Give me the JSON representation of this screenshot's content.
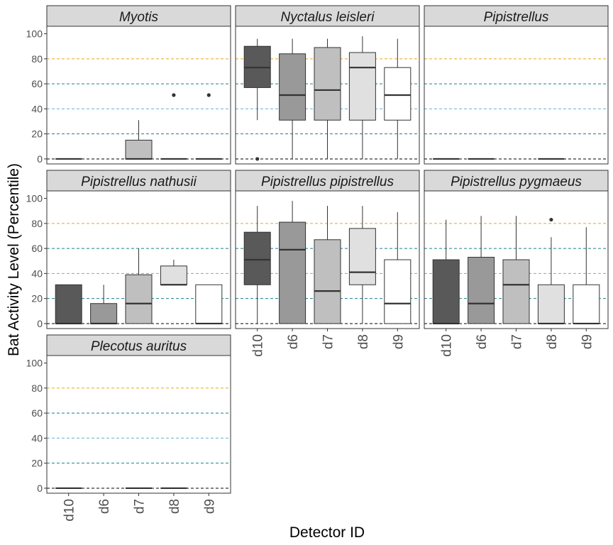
{
  "chart_data": {
    "type": "boxplot",
    "title": "",
    "xlabel": "Detector ID",
    "ylabel": "Bat Activity Level (Percentile)",
    "ylim": [
      -4,
      106
    ],
    "yticks": [
      0,
      20,
      40,
      60,
      80,
      100
    ],
    "categories": [
      "d10",
      "d6",
      "d7",
      "d8",
      "d9"
    ],
    "fill_colors": {
      "d10": "#595959",
      "d6": "#999999",
      "d7": "#bfbfbf",
      "d8": "#e0e0e0",
      "d9": "#ffffff"
    },
    "reference_lines": [
      {
        "y": 0,
        "color": "#000000"
      },
      {
        "y": 20,
        "color": "#1a7f8a"
      },
      {
        "y": 40,
        "color": "#6aaed6"
      },
      {
        "y": 60,
        "color": "#1a7f8a"
      },
      {
        "y": 80,
        "color": "#e6a817"
      }
    ],
    "facet_layout": {
      "columns": 3,
      "rows": 3
    },
    "facets": [
      {
        "name": "Myotis",
        "boxes": [
          {
            "category": "d10",
            "q1": 0,
            "median": 0,
            "q3": 0,
            "low": 0,
            "high": 0,
            "outliers": []
          },
          {
            "category": "d7",
            "q1": 0,
            "median": 0,
            "q3": 15,
            "low": 0,
            "high": 31,
            "outliers": []
          },
          {
            "category": "d8",
            "q1": 0,
            "median": 0,
            "q3": 0,
            "low": 0,
            "high": 0,
            "outliers": [
              51
            ]
          },
          {
            "category": "d9",
            "q1": 0,
            "median": 0,
            "q3": 0,
            "low": 0,
            "high": 0,
            "outliers": [
              51
            ]
          }
        ]
      },
      {
        "name": "Nyctalus leisleri",
        "boxes": [
          {
            "category": "d10",
            "q1": 57,
            "median": 73,
            "q3": 90,
            "low": 31,
            "high": 96,
            "outliers": [
              0
            ]
          },
          {
            "category": "d6",
            "q1": 31,
            "median": 51,
            "q3": 84,
            "low": 0,
            "high": 96,
            "outliers": []
          },
          {
            "category": "d7",
            "q1": 31,
            "median": 55,
            "q3": 89,
            "low": 0,
            "high": 96,
            "outliers": []
          },
          {
            "category": "d8",
            "q1": 31,
            "median": 73,
            "q3": 85,
            "low": 0,
            "high": 98,
            "outliers": []
          },
          {
            "category": "d9",
            "q1": 31,
            "median": 51,
            "q3": 73,
            "low": 0,
            "high": 96,
            "outliers": []
          }
        ]
      },
      {
        "name": "Pipistrellus",
        "boxes": [
          {
            "category": "d10",
            "q1": 0,
            "median": 0,
            "q3": 0,
            "low": 0,
            "high": 0,
            "outliers": []
          },
          {
            "category": "d6",
            "q1": 0,
            "median": 0,
            "q3": 0,
            "low": 0,
            "high": 0,
            "outliers": []
          },
          {
            "category": "d8",
            "q1": 0,
            "median": 0,
            "q3": 0,
            "low": 0,
            "high": 0,
            "outliers": []
          }
        ]
      },
      {
        "name": "Pipistrellus nathusii",
        "boxes": [
          {
            "category": "d10",
            "q1": 0,
            "median": 0,
            "q3": 31,
            "low": 0,
            "high": 31,
            "outliers": []
          },
          {
            "category": "d6",
            "q1": 0,
            "median": 0,
            "q3": 16,
            "low": 0,
            "high": 31,
            "outliers": []
          },
          {
            "category": "d7",
            "q1": 0,
            "median": 16,
            "q3": 39,
            "low": 0,
            "high": 60,
            "outliers": []
          },
          {
            "category": "d8",
            "q1": 31,
            "median": 31,
            "q3": 46,
            "low": 31,
            "high": 51,
            "outliers": []
          },
          {
            "category": "d9",
            "q1": 0,
            "median": 0,
            "q3": 31,
            "low": 0,
            "high": 31,
            "outliers": []
          }
        ]
      },
      {
        "name": "Pipistrellus pipistrellus",
        "boxes": [
          {
            "category": "d10",
            "q1": 31,
            "median": 51,
            "q3": 73,
            "low": 0,
            "high": 94,
            "outliers": []
          },
          {
            "category": "d6",
            "q1": 0,
            "median": 59,
            "q3": 81,
            "low": 0,
            "high": 98,
            "outliers": []
          },
          {
            "category": "d7",
            "q1": 0,
            "median": 26,
            "q3": 67,
            "low": 0,
            "high": 94,
            "outliers": []
          },
          {
            "category": "d8",
            "q1": 31,
            "median": 41,
            "q3": 76,
            "low": 0,
            "high": 94,
            "outliers": []
          },
          {
            "category": "d9",
            "q1": 0,
            "median": 16,
            "q3": 51,
            "low": 0,
            "high": 89,
            "outliers": []
          }
        ]
      },
      {
        "name": "Pipistrellus pygmaeus",
        "boxes": [
          {
            "category": "d10",
            "q1": 0,
            "median": 0,
            "q3": 51,
            "low": 0,
            "high": 83,
            "outliers": []
          },
          {
            "category": "d6",
            "q1": 0,
            "median": 16,
            "q3": 53,
            "low": 0,
            "high": 86,
            "outliers": []
          },
          {
            "category": "d7",
            "q1": 0,
            "median": 31,
            "q3": 51,
            "low": 0,
            "high": 86,
            "outliers": []
          },
          {
            "category": "d8",
            "q1": 0,
            "median": 0,
            "q3": 31,
            "low": 0,
            "high": 69,
            "outliers": [
              83
            ]
          },
          {
            "category": "d9",
            "q1": 0,
            "median": 0,
            "q3": 31,
            "low": 0,
            "high": 77,
            "outliers": []
          }
        ]
      },
      {
        "name": "Plecotus auritus",
        "boxes": [
          {
            "category": "d10",
            "q1": 0,
            "median": 0,
            "q3": 0,
            "low": 0,
            "high": 0,
            "outliers": []
          },
          {
            "category": "d7",
            "q1": 0,
            "median": 0,
            "q3": 0,
            "low": 0,
            "high": 0,
            "outliers": []
          },
          {
            "category": "d8",
            "q1": 0,
            "median": 0,
            "q3": 0,
            "low": 0,
            "high": 0,
            "outliers": []
          }
        ]
      }
    ],
    "grid": false,
    "legend": "none"
  }
}
